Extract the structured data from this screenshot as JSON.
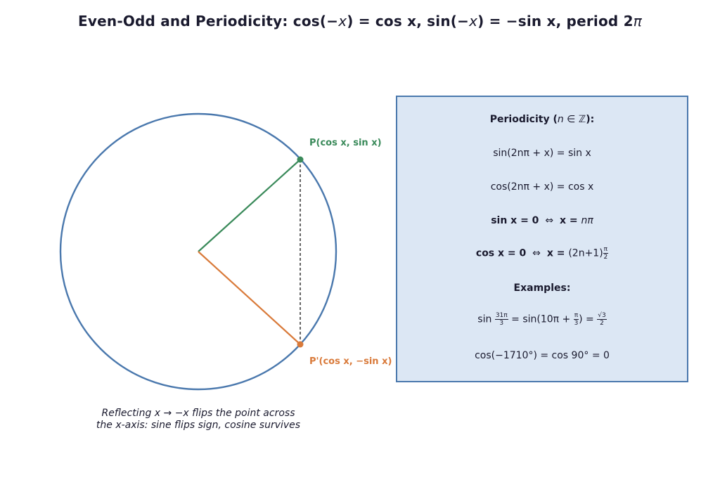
{
  "title": {
    "prefix": "Even-Odd and Periodicity:  cos(",
    "var1": "x",
    "mid1": ") = cos x,  sin(",
    "var2": "x",
    "mid2": ") = ",
    "mid3": "sin x,  period 2",
    "pi": "π",
    "minus": "−"
  },
  "colors": {
    "circle": "#4a78ad",
    "p_point": "#3a8a5a",
    "pprime_point": "#d97a3a",
    "box_fill": "#dce7f4",
    "box_border": "#4a78ad"
  },
  "labels": {
    "p": "P(cos x, sin x)",
    "pprime": "P'(cos x, −sin x)"
  },
  "caption": {
    "line1": "Reflecting x  →  −x flips the point across",
    "line2": "the x-axis: sine flips sign, cosine survives"
  },
  "box": {
    "periodicity_heading": "Periodicity (",
    "periodicity_n": "n",
    "periodicity_set": " ∈ ℤ",
    "periodicity_close": "):",
    "sin_period": "sin(2nπ + x) = sin x",
    "cos_period": "cos(2nπ + x) = cos x",
    "sin_zero_lhs": "sin x = 0",
    "iff": "⇔",
    "sin_zero_rhs_x": "x = ",
    "sin_zero_rhs_val": "nπ",
    "cos_zero_lhs": "cos x = 0",
    "cos_zero_rhs_x": "x = ",
    "cos_zero_rhs_val": "(2n+1)",
    "cos_zero_frac_num": "π",
    "cos_zero_frac_den": "2",
    "examples_heading": "Examples:",
    "ex1_sin": "sin",
    "ex1_frac_num": "31π",
    "ex1_frac_den": "3",
    "ex1_mid": " = sin(10π + ",
    "ex1_frac2_num": "π",
    "ex1_frac2_den": "3",
    "ex1_eq": ") = ",
    "ex1_frac3_num": "√3",
    "ex1_frac3_den": "2",
    "ex2": "cos(−1710°) = cos 90° = 0"
  }
}
